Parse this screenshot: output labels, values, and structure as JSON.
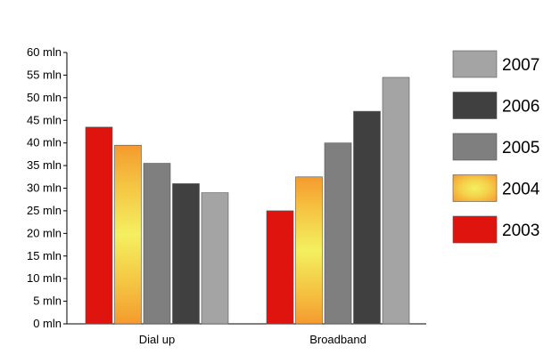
{
  "chart_data": {
    "type": "bar",
    "title": "",
    "xlabel": "",
    "ylabel": "",
    "ylim": [
      0,
      60
    ],
    "ytick_step": 5,
    "ytick_suffix": " mln",
    "grid": false,
    "legend_position": "right",
    "categories": [
      "Dial up",
      "Broadband"
    ],
    "series": [
      {
        "name": "2003",
        "values": [
          43.5,
          25
        ],
        "color": "#e0140e",
        "style": "flat"
      },
      {
        "name": "2004",
        "values": [
          39.5,
          32.5
        ],
        "color": "#f5a033",
        "style": "glow"
      },
      {
        "name": "2005",
        "values": [
          35.5,
          40
        ],
        "color": "#7f7f7f",
        "style": "flat"
      },
      {
        "name": "2006",
        "values": [
          31,
          47
        ],
        "color": "#404040",
        "style": "flat"
      },
      {
        "name": "2007",
        "values": [
          29,
          54.5
        ],
        "color": "#a4a4a4",
        "style": "flat"
      }
    ],
    "legend_order": [
      "2007",
      "2006",
      "2005",
      "2004",
      "2003"
    ]
  }
}
